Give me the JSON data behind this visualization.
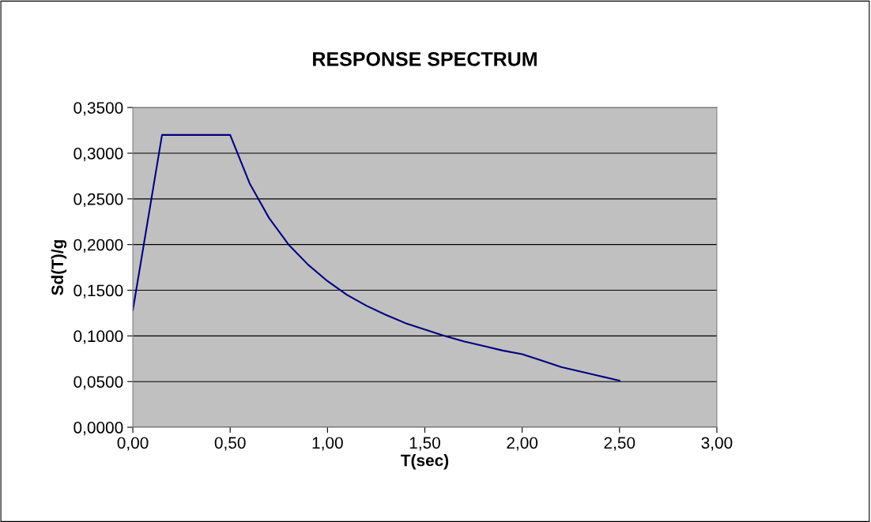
{
  "chart_data": {
    "type": "line",
    "title": "RESPONSE SPECTRUM",
    "xlabel": "T(sec)",
    "ylabel": "Sd(T)/g",
    "x": [
      0,
      0.15,
      0.5,
      0.6,
      0.7,
      0.8,
      0.9,
      1.0,
      1.1,
      1.2,
      1.3,
      1.4,
      1.5,
      1.6,
      1.7,
      1.8,
      1.9,
      2.0,
      2.1,
      2.2,
      2.3,
      2.4,
      2.5
    ],
    "series": [
      {
        "color": "#000080",
        "values": [
          0.128,
          0.32,
          0.32,
          0.267,
          0.229,
          0.2,
          0.178,
          0.16,
          0.145,
          0.133,
          0.123,
          0.114,
          0.107,
          0.1,
          0.094,
          0.089,
          0.084,
          0.08,
          0.073,
          0.066,
          0.061,
          0.056,
          0.051
        ]
      }
    ],
    "xlim": [
      0,
      3
    ],
    "ylim": [
      0,
      0.35
    ],
    "xticks": [
      {
        "value": 0,
        "label": "0,00"
      },
      {
        "value": 0.5,
        "label": "0,50"
      },
      {
        "value": 1,
        "label": "1,00"
      },
      {
        "value": 1.5,
        "label": "1,50"
      },
      {
        "value": 2,
        "label": "2,00"
      },
      {
        "value": 2.5,
        "label": "2,50"
      },
      {
        "value": 3,
        "label": "3,00"
      }
    ],
    "yticks": [
      {
        "value": 0,
        "label": "0,0000"
      },
      {
        "value": 0.05,
        "label": "0,0500"
      },
      {
        "value": 0.1,
        "label": "0,1000"
      },
      {
        "value": 0.15,
        "label": "0,1500"
      },
      {
        "value": 0.2,
        "label": "0,2000"
      },
      {
        "value": 0.25,
        "label": "0,2500"
      },
      {
        "value": 0.3,
        "label": "0,3000"
      },
      {
        "value": 0.35,
        "label": "0,3500"
      }
    ],
    "grid": "y",
    "marker": "none",
    "line_style": "solid",
    "legend": false
  }
}
